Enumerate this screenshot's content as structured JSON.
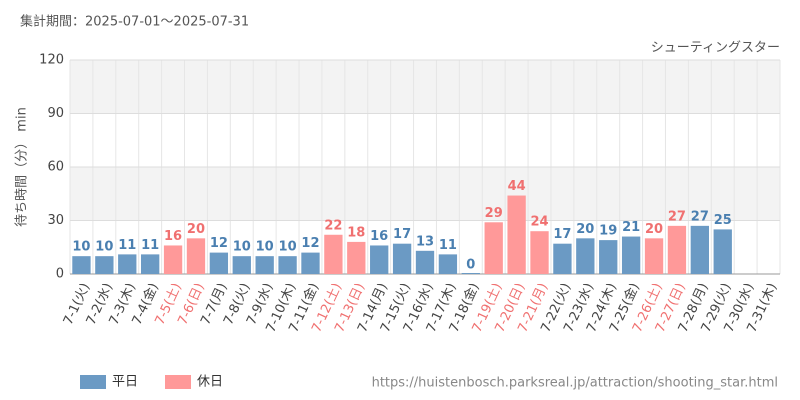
{
  "header": {
    "period": "集計期間：2025-07-01～2025-07-31",
    "attraction": "シューティングスター",
    "url": "https://huistenbosch.parksreal.jp/attraction/shooting_star.html"
  },
  "chart_data": {
    "type": "bar",
    "y_label": "待ち時間（分） min",
    "categories": [
      "7-1(火)",
      "7-2(水)",
      "7-3(木)",
      "7-4(金)",
      "7-5(土)",
      "7-6(日)",
      "7-7(月)",
      "7-8(火)",
      "7-9(水)",
      "7-10(木)",
      "7-11(金)",
      "7-12(土)",
      "7-13(日)",
      "7-14(月)",
      "7-15(火)",
      "7-16(水)",
      "7-17(木)",
      "7-18(金)",
      "7-19(土)",
      "7-20(日)",
      "7-21(月)",
      "7-22(火)",
      "7-23(水)",
      "7-24(木)",
      "7-25(金)",
      "7-26(土)",
      "7-27(日)",
      "7-28(月)",
      "7-29(火)",
      "7-30(水)",
      "7-31(木)"
    ],
    "series": [
      {
        "name": "平日",
        "color": "#6b9ac4",
        "values": [
          10,
          10,
          11,
          11,
          null,
          null,
          12,
          10,
          10,
          10,
          12,
          null,
          null,
          16,
          17,
          13,
          11,
          0,
          null,
          null,
          null,
          17,
          20,
          19,
          21,
          null,
          null,
          27,
          25,
          null,
          null
        ]
      },
      {
        "name": "休日",
        "color": "#ff9999",
        "values": [
          null,
          null,
          null,
          null,
          16,
          20,
          null,
          null,
          null,
          null,
          null,
          22,
          18,
          null,
          null,
          null,
          null,
          null,
          29,
          44,
          24,
          null,
          null,
          null,
          null,
          20,
          27,
          null,
          null,
          null,
          null
        ]
      }
    ],
    "ylim": [
      0,
      120
    ],
    "yticks": [
      0,
      30,
      60,
      90,
      120
    ],
    "grid": true
  }
}
